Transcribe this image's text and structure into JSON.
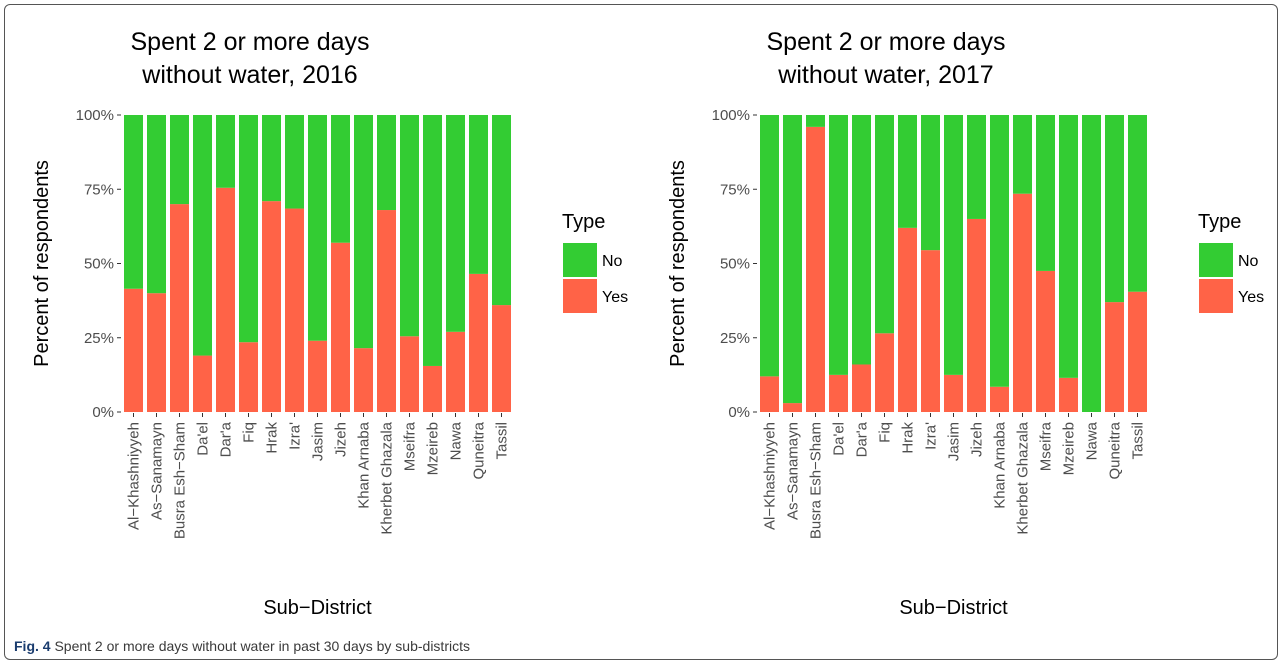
{
  "caption": {
    "label": "Fig. 4",
    "text": "Spent 2 or more days without water in past 30 days by sub-districts"
  },
  "colors": {
    "No": "#33CC33",
    "Yes": "#FF6347"
  },
  "chart_data": [
    {
      "type": "bar",
      "stacked": true,
      "title_lines": [
        "Spent 2 or more days",
        "without water, 2016"
      ],
      "xlabel": "Sub−District",
      "ylabel": "Percent of respondents",
      "ylim": [
        0,
        100
      ],
      "yticks": [
        "0%",
        "25%",
        "50%",
        "75%",
        "100%"
      ],
      "categories": [
        "Al−Khashniyyeh",
        "As−Sanamayn",
        "Busra Esh−Sham",
        "Da'el",
        "Dar'a",
        "Fiq",
        "Hrak",
        "Izra'",
        "Jasim",
        "Jizeh",
        "Khan Arnaba",
        "Kherbet Ghazala",
        "Mseifra",
        "Mzeireb",
        "Nawa",
        "Quneitra",
        "Tassil"
      ],
      "legend": {
        "title": "Type",
        "position": "right",
        "entries": [
          "No",
          "Yes"
        ]
      },
      "series": [
        {
          "name": "Yes",
          "values": [
            41.5,
            40,
            70,
            19,
            75.5,
            23.5,
            71,
            68.5,
            24,
            57,
            21.5,
            68,
            25.5,
            15.5,
            27,
            46.5,
            36
          ]
        },
        {
          "name": "No",
          "values": [
            58.5,
            60,
            30,
            81,
            24.5,
            76.5,
            29,
            31.5,
            76,
            43,
            78.5,
            32,
            74.5,
            84.5,
            73,
            53.5,
            64
          ]
        }
      ]
    },
    {
      "type": "bar",
      "stacked": true,
      "title_lines": [
        "Spent 2 or more days",
        "without water, 2017"
      ],
      "xlabel": "Sub−District",
      "ylabel": "Percent of respondents",
      "ylim": [
        0,
        100
      ],
      "yticks": [
        "0%",
        "25%",
        "50%",
        "75%",
        "100%"
      ],
      "categories": [
        "Al−Khashniyyeh",
        "As−Sanamayn",
        "Busra Esh−Sham",
        "Da'el",
        "Dar'a",
        "Fiq",
        "Hrak",
        "Izra'",
        "Jasim",
        "Jizeh",
        "Khan Arnaba",
        "Kherbet Ghazala",
        "Mseifra",
        "Mzeireb",
        "Nawa",
        "Quneitra",
        "Tassil"
      ],
      "legend": {
        "title": "Type",
        "position": "right",
        "entries": [
          "No",
          "Yes"
        ]
      },
      "series": [
        {
          "name": "Yes",
          "values": [
            12,
            3,
            96,
            12.5,
            16,
            26.5,
            62,
            54.5,
            12.5,
            65,
            8.5,
            73.5,
            47.5,
            11.5,
            0,
            37,
            40.5
          ]
        },
        {
          "name": "No",
          "values": [
            88,
            97,
            4,
            87.5,
            84,
            73.5,
            38,
            45.5,
            87.5,
            35,
            91.5,
            26.5,
            52.5,
            88.5,
            100,
            63,
            59.5
          ]
        }
      ]
    }
  ]
}
